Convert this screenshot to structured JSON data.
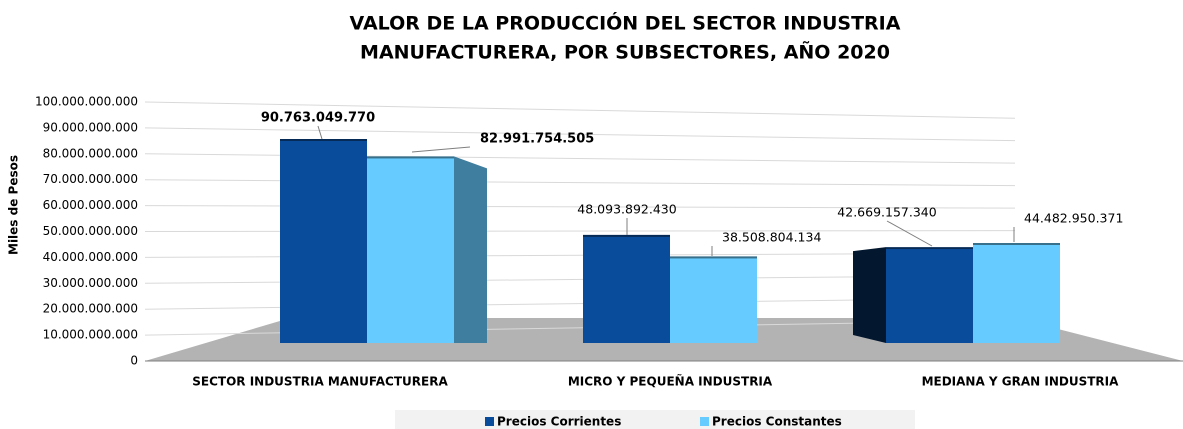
{
  "chart_data": {
    "type": "bar3d",
    "title": [
      "VALOR DE LA PRODUCCIÓN DEL SECTOR INDUSTRIA",
      "MANUFACTURERA, POR SUBSECTORES, AÑO 2020"
    ],
    "y_label": "Miles de Pesos",
    "categories": [
      "SECTOR INDUSTRIA MANUFACTURERA",
      "MICRO Y PEQUEÑA INDUSTRIA",
      "MEDIANA Y GRAN INDUSTRIA"
    ],
    "series": [
      {
        "name": "Precios Corrientes",
        "color": "#0a4c9c",
        "values": [
          90763049770,
          48093892430,
          42669157340
        ],
        "value_labels": [
          "90.763.049.770",
          "48.093.892.430",
          "42.669.157.340"
        ]
      },
      {
        "name": "Precios Constantes",
        "color": "#66ccff",
        "values": [
          82991754505,
          38508804134,
          44482950371
        ],
        "value_labels": [
          "82.991.754.505",
          "38.508.804.134",
          "44.482.950.371"
        ]
      }
    ],
    "ylim": [
      0,
      100000000000
    ],
    "yticks": [
      0,
      {
        "value": 10000000000,
        "label": "10.000.000.000"
      },
      {
        "value": 20000000000,
        "label": "20.000.000.000"
      },
      {
        "value": 30000000000,
        "label": "30.000.000.000"
      },
      {
        "value": 40000000000,
        "label": "40.000.000.000"
      },
      {
        "value": 50000000000,
        "label": "50.000.000.000"
      },
      {
        "value": 60000000000,
        "label": "60.000.000.000"
      },
      {
        "value": 70000000000,
        "label": "70.000.000.000"
      },
      {
        "value": 80000000000,
        "label": "80.000.000.000"
      },
      {
        "value": 90000000000,
        "label": "90.000.000.000"
      },
      {
        "value": 100000000000,
        "label": "100.000.000.000"
      }
    ],
    "grid": true,
    "legend": "bottom"
  }
}
